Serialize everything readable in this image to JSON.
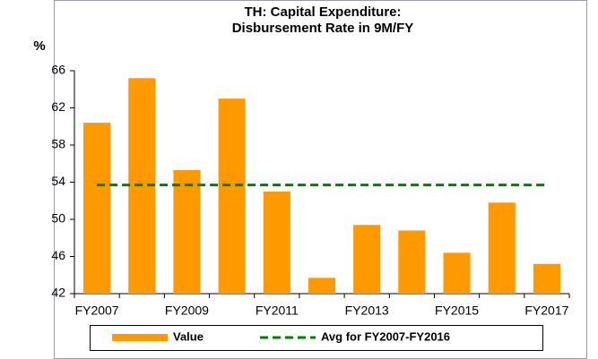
{
  "chart_data": {
    "type": "bar",
    "title": [
      "TH: Capital Expenditure:",
      "Disbursement Rate in 9M/FY"
    ],
    "y_label": "%",
    "categories": [
      "FY2007",
      null,
      "FY2009",
      null,
      "FY2011",
      null,
      "FY2013",
      null,
      "FY2015",
      null,
      "FY2017"
    ],
    "series": [
      {
        "name": "Value",
        "type": "bar",
        "color": "#ff9900",
        "values": [
          60.4,
          65.2,
          55.3,
          63.0,
          53.0,
          43.7,
          49.4,
          48.8,
          46.4,
          51.8,
          45.2
        ]
      },
      {
        "name": "Avg for FY2007-FY2016",
        "type": "line",
        "color": "#008000",
        "values": [
          53.7,
          53.7,
          53.7,
          53.7,
          53.7,
          53.7,
          53.7,
          53.7,
          53.7,
          53.7,
          53.7
        ]
      }
    ],
    "ylim": [
      42,
      66
    ],
    "yticks": [
      42,
      46,
      50,
      54,
      58,
      62,
      66
    ],
    "grid": false,
    "legend": "bottom"
  }
}
